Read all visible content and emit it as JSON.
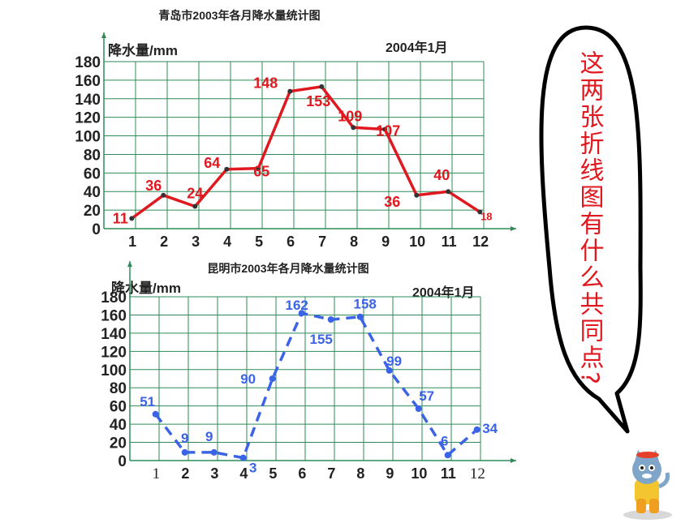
{
  "chart_data": [
    {
      "type": "line",
      "title": "青岛市2003年各月降水量统计图",
      "ylabel": "降水量/mm",
      "date_label": "2004年1月",
      "categories": [
        "1",
        "2",
        "3",
        "4",
        "5",
        "6",
        "7",
        "8",
        "9",
        "10",
        "11",
        "12"
      ],
      "values": [
        11,
        36,
        24,
        64,
        65,
        148,
        153,
        109,
        107,
        36,
        40,
        18
      ],
      "ylim": [
        0,
        180
      ],
      "yticks": [
        "0",
        "20",
        "40",
        "60",
        "80",
        "100",
        "120",
        "140",
        "160",
        "180"
      ],
      "line_style": "solid",
      "line_color": "#e0181f",
      "label_color": "#e0181f",
      "grid": true
    },
    {
      "type": "line",
      "title": "昆明市2003年各月降水量统计图",
      "ylabel": "降水量/mm",
      "date_label": "2004年1月",
      "categories": [
        "1",
        "2",
        "3",
        "4",
        "5",
        "6",
        "7",
        "8",
        "9",
        "10",
        "11",
        "12"
      ],
      "values": [
        51,
        9,
        9,
        3,
        90,
        162,
        155,
        158,
        99,
        57,
        6,
        34
      ],
      "ylim": [
        0,
        180
      ],
      "yticks": [
        "0",
        "20",
        "40",
        "60",
        "80",
        "100",
        "120",
        "140",
        "160",
        "180"
      ],
      "line_style": "dashed",
      "line_color": "#3b63e6",
      "label_color": "#3b63e6",
      "grid": true
    }
  ],
  "bubble": {
    "text": "这两张折线图有什么共同点?",
    "color": "#e0181f"
  },
  "mascot": {
    "icon": "cat-mascot-icon"
  }
}
